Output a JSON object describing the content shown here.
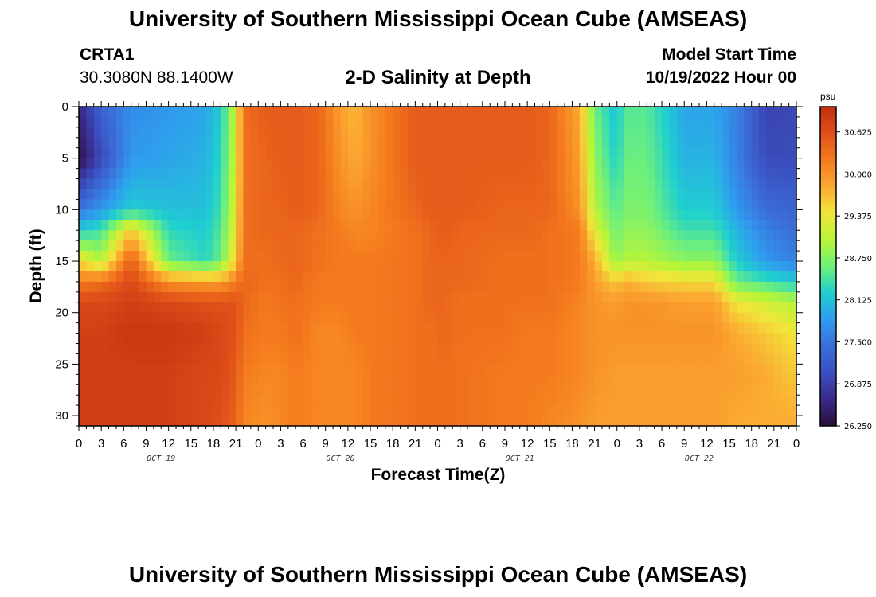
{
  "header": {
    "title": "University of Southern Mississippi Ocean Cube (AMSEAS)",
    "station": "CRTA1",
    "coords": "30.3080N  88.1400W",
    "plot_title": "2-D Salinity at Depth",
    "model_start_label": "Model Start Time",
    "model_start_value": "10/19/2022 Hour 00"
  },
  "footer": {
    "title": "University of Southern Mississippi Ocean Cube (AMSEAS)"
  },
  "chart_data": {
    "type": "heatmap",
    "title": "2-D Salinity at Depth",
    "xlabel": "Forecast Time(Z)",
    "ylabel": "Depth (ft)",
    "x_range_hours": [
      0,
      96
    ],
    "ylim": [
      0,
      31
    ],
    "y_inverted": true,
    "x_tick_labels": [
      "0",
      "3",
      "6",
      "9",
      "12",
      "15",
      "18",
      "21",
      "0",
      "3",
      "6",
      "9",
      "12",
      "15",
      "18",
      "21",
      "0",
      "3",
      "6",
      "9",
      "12",
      "15",
      "18",
      "21",
      "0",
      "3",
      "6",
      "9",
      "12",
      "15",
      "18",
      "21",
      "0"
    ],
    "y_ticks": [
      0,
      5,
      10,
      15,
      20,
      25,
      30
    ],
    "day_labels": [
      {
        "label": "OCT 19",
        "hour": 11
      },
      {
        "label": "OCT 20",
        "hour": 35
      },
      {
        "label": "OCT 21",
        "hour": 59
      },
      {
        "label": "OCT 22",
        "hour": 83
      }
    ],
    "colorbar": {
      "unit": "psu",
      "min": 26.25,
      "max": 31.0,
      "tick_values": [
        26.25,
        26.875,
        27.5,
        28.125,
        28.75,
        29.375,
        30.0,
        30.625
      ],
      "tick_labels": [
        "26.250",
        "26.875",
        "27.500",
        "28.125",
        "28.750",
        "29.375",
        "30.000",
        "30.625"
      ],
      "colors": [
        "#2b0f3a",
        "#3a2a8a",
        "#3a4fc0",
        "#3b6fd8",
        "#2f9cef",
        "#1fd0cf",
        "#6ff07a",
        "#b8f536",
        "#f2e53a",
        "#fba932",
        "#f47a1d",
        "#e0501a",
        "#c0300f"
      ]
    },
    "salinity_profiles_psu": {
      "depths_ft": [
        0,
        5,
        10,
        12,
        15,
        17,
        19,
        22,
        26,
        31
      ],
      "hours": [
        0,
        3,
        7,
        12,
        17,
        19,
        21,
        22,
        25,
        27,
        29,
        32,
        35,
        37,
        39,
        45,
        47,
        49,
        51,
        57,
        60,
        63,
        67,
        69,
        72,
        73,
        76,
        81,
        85,
        88,
        92,
        96
      ],
      "values": [
        [
          26.6,
          26.3,
          27.5,
          28.2,
          29.5,
          30.2,
          30.7,
          30.8,
          30.8,
          30.8
        ],
        [
          27.3,
          27.0,
          27.8,
          28.4,
          29.0,
          30.3,
          30.7,
          30.8,
          30.8,
          30.8
        ],
        [
          27.7,
          27.8,
          28.2,
          29.6,
          30.5,
          30.7,
          30.8,
          30.9,
          30.8,
          30.8
        ],
        [
          27.8,
          27.9,
          28.1,
          28.3,
          28.6,
          30.0,
          30.7,
          30.9,
          30.8,
          30.8
        ],
        [
          27.9,
          28.0,
          28.1,
          28.2,
          28.3,
          29.9,
          30.6,
          30.8,
          30.7,
          30.7
        ],
        [
          28.2,
          28.3,
          28.4,
          28.5,
          28.6,
          29.9,
          30.6,
          30.7,
          30.7,
          30.6
        ],
        [
          29.2,
          29.2,
          29.3,
          29.4,
          29.6,
          30.2,
          30.6,
          30.6,
          30.5,
          30.4
        ],
        [
          30.3,
          30.3,
          30.3,
          30.3,
          30.3,
          30.4,
          30.4,
          30.3,
          30.2,
          30.1
        ],
        [
          30.5,
          30.4,
          30.4,
          30.4,
          30.3,
          30.3,
          30.2,
          30.2,
          30.1,
          30.0
        ],
        [
          30.5,
          30.5,
          30.4,
          30.4,
          30.4,
          30.3,
          30.3,
          30.2,
          30.1,
          30.1
        ],
        [
          30.5,
          30.5,
          30.5,
          30.4,
          30.4,
          30.4,
          30.3,
          30.3,
          30.2,
          30.2
        ],
        [
          30.4,
          30.4,
          30.4,
          30.3,
          30.3,
          30.2,
          30.2,
          30.1,
          30.1,
          30.1
        ],
        [
          29.9,
          30.0,
          30.1,
          30.2,
          30.2,
          30.2,
          30.2,
          30.1,
          30.1,
          30.1
        ],
        [
          29.7,
          29.8,
          30.0,
          30.1,
          30.2,
          30.2,
          30.2,
          30.2,
          30.1,
          30.1
        ],
        [
          30.0,
          30.0,
          30.1,
          30.1,
          30.2,
          30.2,
          30.2,
          30.2,
          30.2,
          30.2
        ],
        [
          30.5,
          30.5,
          30.4,
          30.3,
          30.3,
          30.3,
          30.3,
          30.3,
          30.3,
          30.3
        ],
        [
          30.5,
          30.5,
          30.5,
          30.4,
          30.4,
          30.4,
          30.4,
          30.3,
          30.3,
          30.3
        ],
        [
          30.5,
          30.5,
          30.5,
          30.5,
          30.4,
          30.4,
          30.4,
          30.4,
          30.3,
          30.3
        ],
        [
          30.5,
          30.5,
          30.5,
          30.4,
          30.4,
          30.4,
          30.3,
          30.3,
          30.3,
          30.3
        ],
        [
          30.5,
          30.5,
          30.4,
          30.4,
          30.3,
          30.3,
          30.3,
          30.3,
          30.2,
          30.2
        ],
        [
          30.5,
          30.5,
          30.4,
          30.4,
          30.3,
          30.3,
          30.3,
          30.2,
          30.2,
          30.2
        ],
        [
          30.4,
          30.4,
          30.4,
          30.3,
          30.3,
          30.3,
          30.3,
          30.2,
          30.2,
          30.1
        ],
        [
          29.8,
          29.9,
          30.0,
          30.2,
          30.2,
          30.2,
          30.1,
          30.1,
          30.1,
          30.0
        ],
        [
          28.6,
          28.8,
          29.0,
          29.3,
          29.8,
          29.9,
          30.0,
          30.0,
          30.0,
          29.9
        ],
        [
          28.1,
          28.2,
          28.5,
          28.6,
          28.8,
          29.6,
          29.9,
          30.0,
          29.9,
          29.9
        ],
        [
          28.5,
          28.6,
          28.7,
          28.8,
          29.0,
          29.8,
          30.0,
          30.0,
          29.9,
          29.9
        ],
        [
          28.5,
          28.6,
          28.7,
          28.8,
          29.0,
          29.6,
          30.0,
          30.0,
          29.9,
          29.9
        ],
        [
          27.9,
          28.0,
          28.2,
          28.4,
          28.8,
          29.5,
          29.9,
          30.0,
          29.9,
          29.9
        ],
        [
          27.9,
          28.0,
          28.2,
          28.4,
          28.8,
          29.5,
          29.9,
          30.0,
          29.9,
          29.9
        ],
        [
          27.6,
          27.6,
          27.8,
          28.0,
          28.2,
          28.6,
          29.4,
          29.8,
          29.9,
          29.8
        ],
        [
          26.9,
          27.0,
          27.4,
          27.6,
          27.8,
          28.4,
          29.2,
          29.6,
          29.8,
          29.8
        ],
        [
          27.0,
          27.0,
          27.3,
          27.4,
          27.6,
          28.2,
          29.0,
          29.4,
          29.6,
          29.8
        ]
      ]
    }
  }
}
